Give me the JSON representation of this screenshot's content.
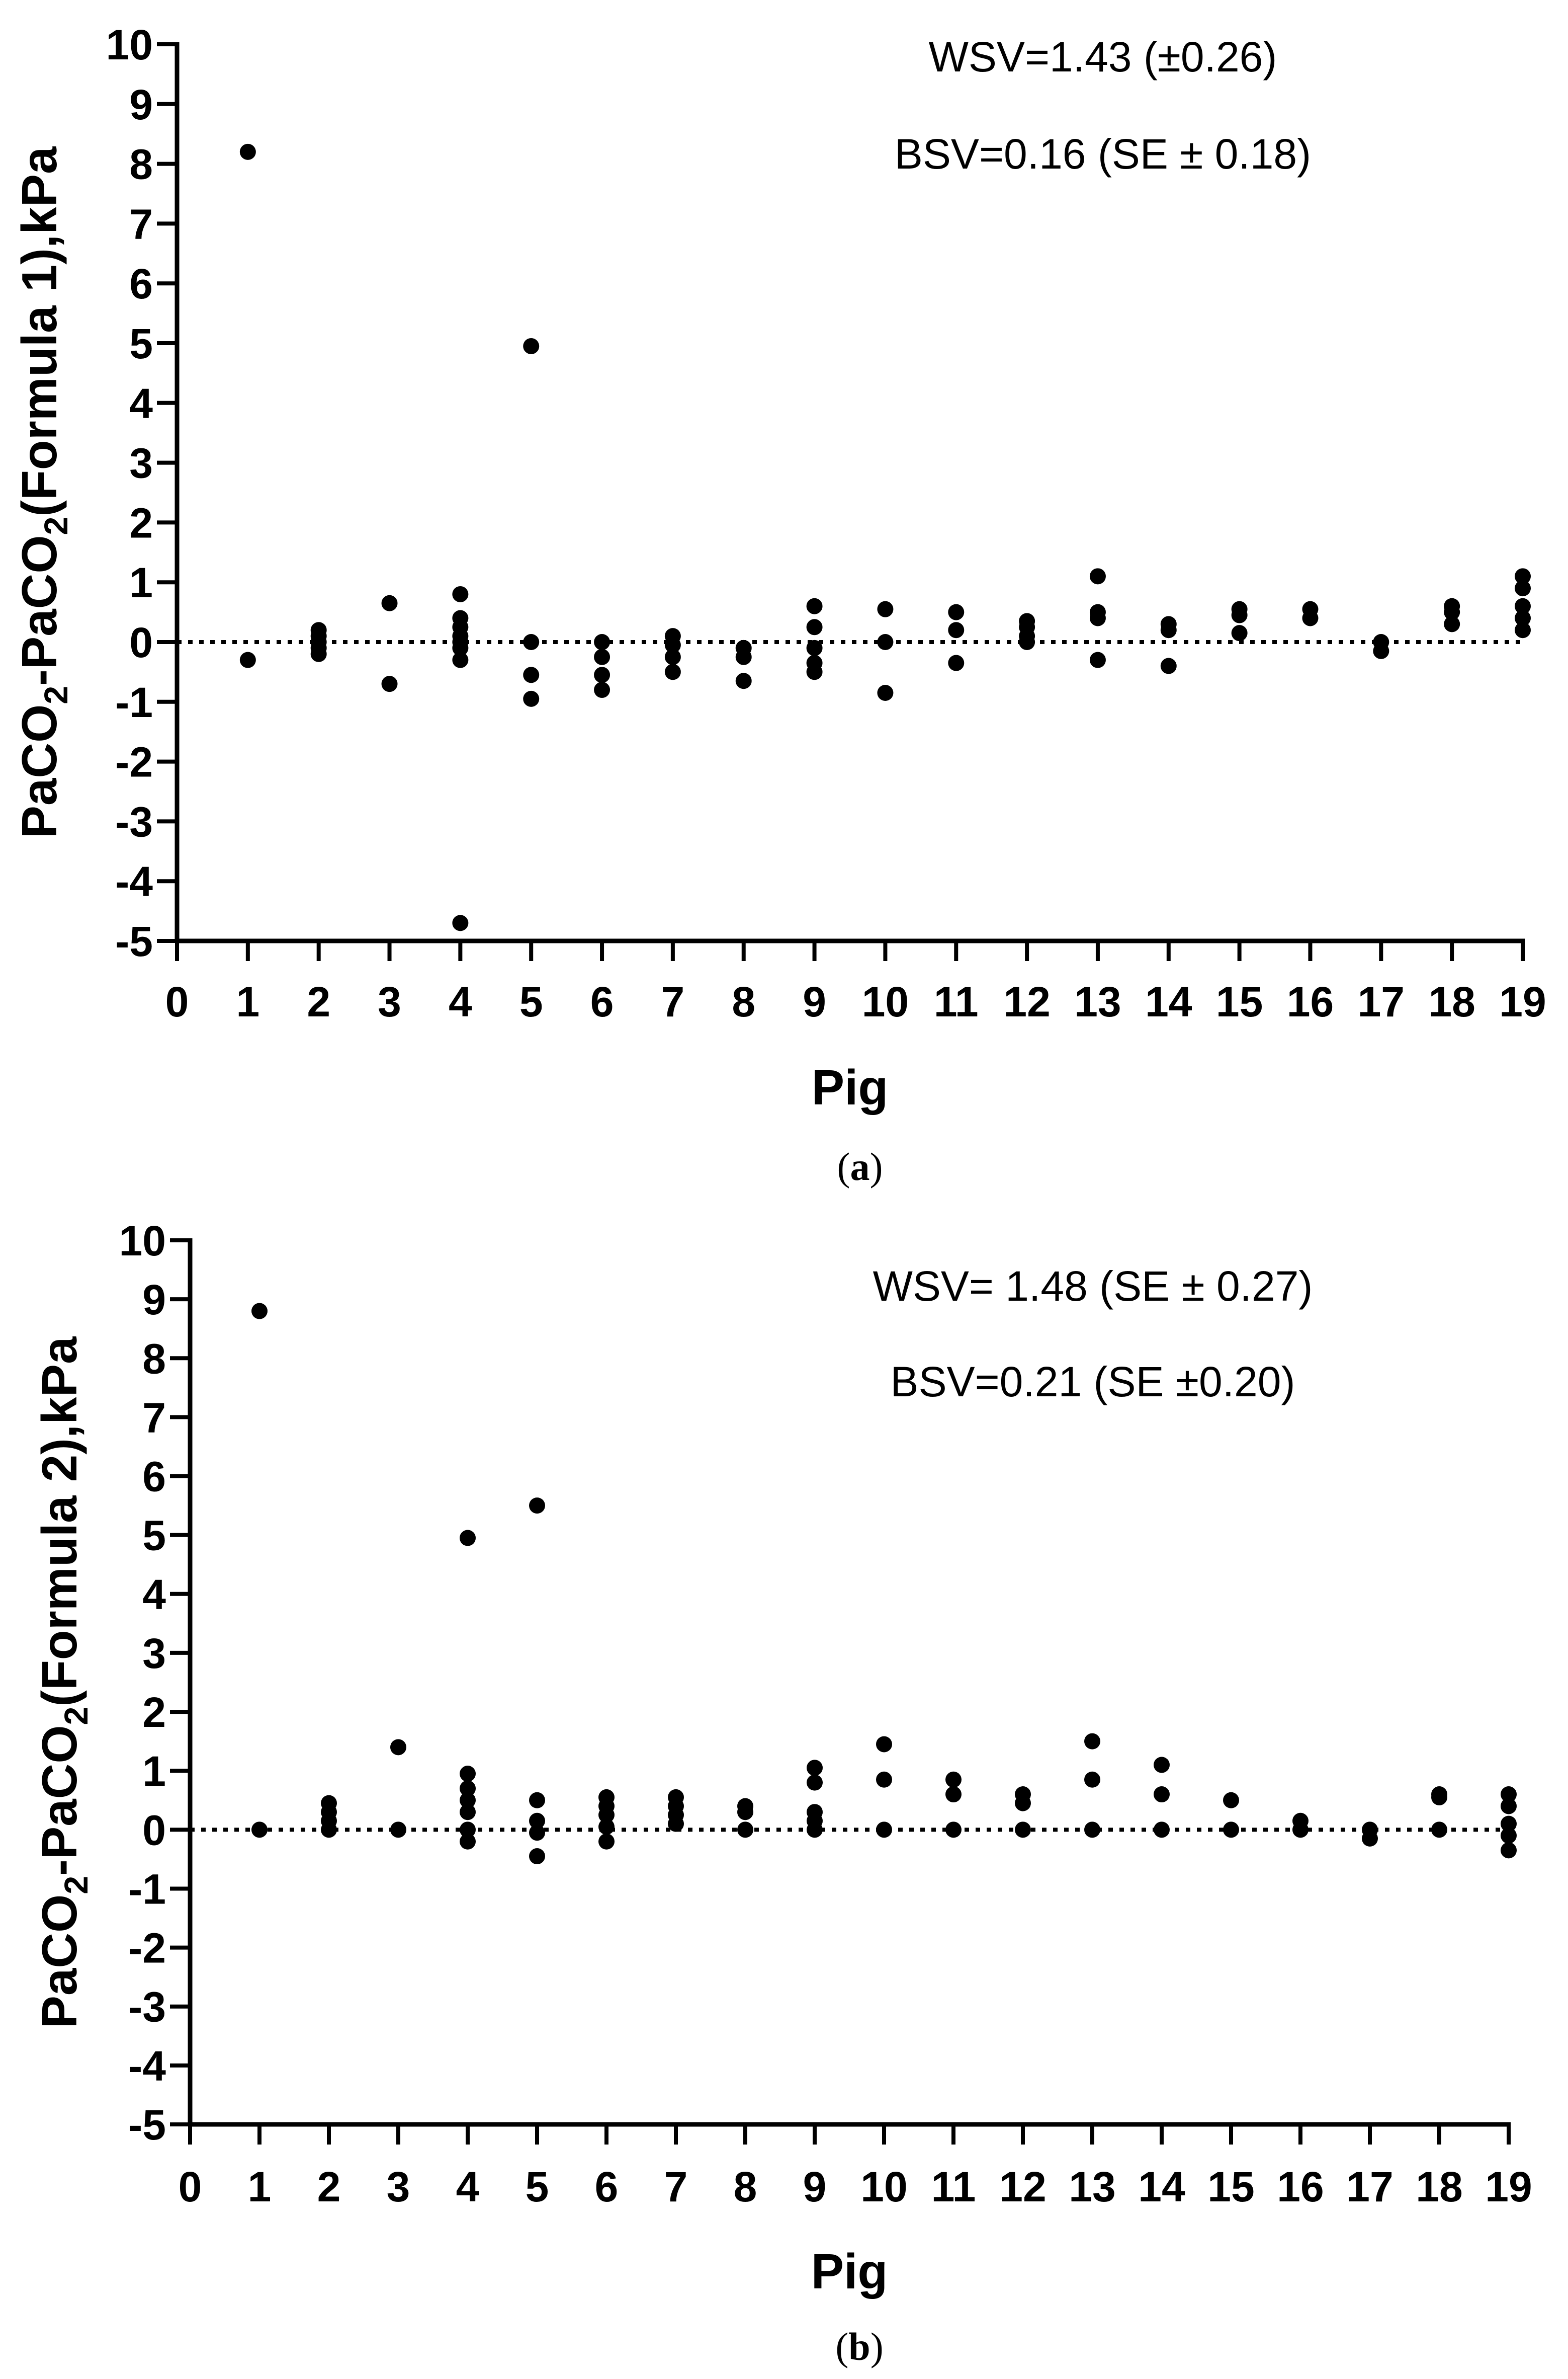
{
  "chart_data": [
    {
      "type": "scatter",
      "panel_label": "a",
      "xlabel": "Pig",
      "ylabel_parts": [
        "PaCO",
        "2",
        "-PaCO",
        "2",
        "(Formula 1),kPa"
      ],
      "xlim": [
        0,
        19
      ],
      "ylim": [
        -5,
        10
      ],
      "x_ticks": [
        0,
        1,
        2,
        3,
        4,
        5,
        6,
        7,
        8,
        9,
        10,
        11,
        12,
        13,
        14,
        15,
        16,
        17,
        18,
        19
      ],
      "y_ticks": [
        -5,
        -4,
        -3,
        -2,
        -1,
        0,
        1,
        2,
        3,
        4,
        5,
        6,
        7,
        8,
        9,
        10
      ],
      "reference_line": {
        "y": 0,
        "style": "dotted"
      },
      "annotations": [
        "WSV=1.43 (±0.26)",
        "BSV=0.16 (SE ± 0.18)"
      ],
      "grid": false,
      "points": [
        {
          "x": 1,
          "y": 8.2
        },
        {
          "x": 1,
          "y": -0.3
        },
        {
          "x": 2,
          "y": 0.2
        },
        {
          "x": 2,
          "y": 0.1
        },
        {
          "x": 2,
          "y": 0.0
        },
        {
          "x": 2,
          "y": -0.1
        },
        {
          "x": 2,
          "y": -0.2
        },
        {
          "x": 3,
          "y": 0.65
        },
        {
          "x": 3,
          "y": -0.7
        },
        {
          "x": 4,
          "y": 0.8
        },
        {
          "x": 4,
          "y": 0.4
        },
        {
          "x": 4,
          "y": 0.25
        },
        {
          "x": 4,
          "y": 0.1
        },
        {
          "x": 4,
          "y": 0.0
        },
        {
          "x": 4,
          "y": -0.1
        },
        {
          "x": 4,
          "y": -0.3
        },
        {
          "x": 4,
          "y": -4.7
        },
        {
          "x": 5,
          "y": 4.95
        },
        {
          "x": 5,
          "y": 0.0
        },
        {
          "x": 5,
          "y": -0.55
        },
        {
          "x": 5,
          "y": -0.95
        },
        {
          "x": 6,
          "y": 0.0
        },
        {
          "x": 6,
          "y": -0.25
        },
        {
          "x": 6,
          "y": -0.55
        },
        {
          "x": 6,
          "y": -0.8
        },
        {
          "x": 7,
          "y": 0.1
        },
        {
          "x": 7,
          "y": -0.05
        },
        {
          "x": 7,
          "y": -0.25
        },
        {
          "x": 7,
          "y": -0.5
        },
        {
          "x": 8,
          "y": -0.1
        },
        {
          "x": 8,
          "y": -0.25
        },
        {
          "x": 8,
          "y": -0.65
        },
        {
          "x": 9,
          "y": 0.6
        },
        {
          "x": 9,
          "y": 0.25
        },
        {
          "x": 9,
          "y": -0.1
        },
        {
          "x": 9,
          "y": -0.35
        },
        {
          "x": 9,
          "y": -0.5
        },
        {
          "x": 10,
          "y": 0.55
        },
        {
          "x": 10,
          "y": 0.0
        },
        {
          "x": 10,
          "y": -0.85
        },
        {
          "x": 11,
          "y": 0.5
        },
        {
          "x": 11,
          "y": 0.2
        },
        {
          "x": 11,
          "y": -0.35
        },
        {
          "x": 12,
          "y": 0.35
        },
        {
          "x": 12,
          "y": 0.25
        },
        {
          "x": 12,
          "y": 0.1
        },
        {
          "x": 12,
          "y": 0.0
        },
        {
          "x": 13,
          "y": 1.1
        },
        {
          "x": 13,
          "y": 0.5
        },
        {
          "x": 13,
          "y": 0.4
        },
        {
          "x": 13,
          "y": -0.3
        },
        {
          "x": 14,
          "y": 0.3
        },
        {
          "x": 14,
          "y": 0.2
        },
        {
          "x": 14,
          "y": -0.4
        },
        {
          "x": 15,
          "y": 0.55
        },
        {
          "x": 15,
          "y": 0.45
        },
        {
          "x": 15,
          "y": 0.15
        },
        {
          "x": 16,
          "y": 0.55
        },
        {
          "x": 16,
          "y": 0.4
        },
        {
          "x": 17,
          "y": 0.0
        },
        {
          "x": 17,
          "y": -0.15
        },
        {
          "x": 18,
          "y": 0.6
        },
        {
          "x": 18,
          "y": 0.5
        },
        {
          "x": 18,
          "y": 0.3
        },
        {
          "x": 19,
          "y": 1.1
        },
        {
          "x": 19,
          "y": 0.9
        },
        {
          "x": 19,
          "y": 0.6
        },
        {
          "x": 19,
          "y": 0.4
        },
        {
          "x": 19,
          "y": 0.2
        }
      ]
    },
    {
      "type": "scatter",
      "panel_label": "b",
      "xlabel": "Pig",
      "ylabel_parts": [
        "PaCO",
        "2",
        "-PaCO",
        "2",
        "(Formula 2),kPa"
      ],
      "xlim": [
        0,
        19
      ],
      "ylim": [
        -5,
        10
      ],
      "x_ticks": [
        0,
        1,
        2,
        3,
        4,
        5,
        6,
        7,
        8,
        9,
        10,
        11,
        12,
        13,
        14,
        15,
        16,
        17,
        18,
        19
      ],
      "y_ticks": [
        -5,
        -4,
        -3,
        -2,
        -1,
        0,
        1,
        2,
        3,
        4,
        5,
        6,
        7,
        8,
        9,
        10
      ],
      "reference_line": {
        "y": 0,
        "style": "dotted"
      },
      "annotations": [
        "WSV= 1.48 (SE ± 0.27)",
        "BSV=0.21 (SE ±0.20)"
      ],
      "grid": false,
      "points": [
        {
          "x": 1,
          "y": 8.8
        },
        {
          "x": 1,
          "y": 0.0
        },
        {
          "x": 2,
          "y": 0.45
        },
        {
          "x": 2,
          "y": 0.3
        },
        {
          "x": 2,
          "y": 0.15
        },
        {
          "x": 2,
          "y": 0.0
        },
        {
          "x": 3,
          "y": 1.4
        },
        {
          "x": 3,
          "y": 0.0
        },
        {
          "x": 4,
          "y": 4.95
        },
        {
          "x": 4,
          "y": 0.95
        },
        {
          "x": 4,
          "y": 0.7
        },
        {
          "x": 4,
          "y": 0.5
        },
        {
          "x": 4,
          "y": 0.3
        },
        {
          "x": 4,
          "y": 0.0
        },
        {
          "x": 4,
          "y": -0.2
        },
        {
          "x": 5,
          "y": 5.5
        },
        {
          "x": 5,
          "y": 0.5
        },
        {
          "x": 5,
          "y": 0.15
        },
        {
          "x": 5,
          "y": -0.05
        },
        {
          "x": 5,
          "y": -0.45
        },
        {
          "x": 6,
          "y": 0.55
        },
        {
          "x": 6,
          "y": 0.4
        },
        {
          "x": 6,
          "y": 0.25
        },
        {
          "x": 6,
          "y": 0.05
        },
        {
          "x": 6,
          "y": -0.2
        },
        {
          "x": 7,
          "y": 0.55
        },
        {
          "x": 7,
          "y": 0.4
        },
        {
          "x": 7,
          "y": 0.25
        },
        {
          "x": 7,
          "y": 0.1
        },
        {
          "x": 8,
          "y": 0.4
        },
        {
          "x": 8,
          "y": 0.3
        },
        {
          "x": 8,
          "y": 0.0
        },
        {
          "x": 9,
          "y": 1.05
        },
        {
          "x": 9,
          "y": 0.8
        },
        {
          "x": 9,
          "y": 0.3
        },
        {
          "x": 9,
          "y": 0.15
        },
        {
          "x": 9,
          "y": 0.0
        },
        {
          "x": 10,
          "y": 1.45
        },
        {
          "x": 10,
          "y": 0.85
        },
        {
          "x": 10,
          "y": 0.0
        },
        {
          "x": 11,
          "y": 0.85
        },
        {
          "x": 11,
          "y": 0.6
        },
        {
          "x": 11,
          "y": 0.0
        },
        {
          "x": 12,
          "y": 0.6
        },
        {
          "x": 12,
          "y": 0.45
        },
        {
          "x": 12,
          "y": 0.0
        },
        {
          "x": 13,
          "y": 1.5
        },
        {
          "x": 13,
          "y": 0.85
        },
        {
          "x": 13,
          "y": 0.0
        },
        {
          "x": 14,
          "y": 1.1
        },
        {
          "x": 14,
          "y": 0.6
        },
        {
          "x": 14,
          "y": 0.0
        },
        {
          "x": 15,
          "y": 0.5
        },
        {
          "x": 15,
          "y": 0.0
        },
        {
          "x": 16,
          "y": 0.15
        },
        {
          "x": 16,
          "y": 0.0
        },
        {
          "x": 17,
          "y": 0.0
        },
        {
          "x": 17,
          "y": -0.15
        },
        {
          "x": 18,
          "y": 0.6
        },
        {
          "x": 18,
          "y": 0.55
        },
        {
          "x": 18,
          "y": 0.0
        },
        {
          "x": 19,
          "y": 0.6
        },
        {
          "x": 19,
          "y": 0.4
        },
        {
          "x": 19,
          "y": 0.1
        },
        {
          "x": 19,
          "y": -0.1
        },
        {
          "x": 19,
          "y": -0.35
        }
      ]
    }
  ],
  "colors": {
    "marker": "#000000",
    "axis": "#000000",
    "background": "#ffffff"
  }
}
